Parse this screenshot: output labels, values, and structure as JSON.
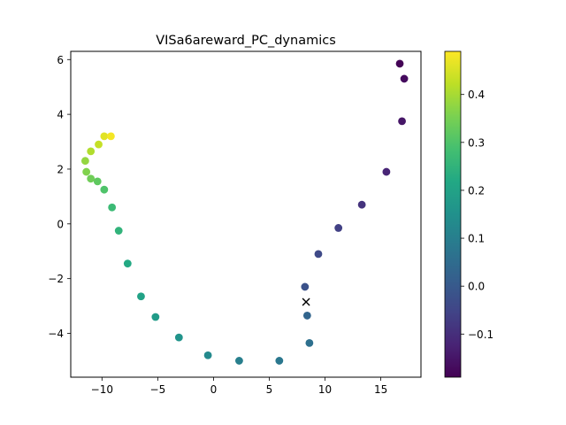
{
  "chart_data": {
    "type": "scatter",
    "title": "VISa6areward_PC_dynamics",
    "xlabel": "",
    "ylabel": "",
    "xlim": [
      -12.8,
      18.6
    ],
    "ylim": [
      -5.6,
      6.3
    ],
    "xticks": [
      -10,
      -5,
      0,
      5,
      10,
      15
    ],
    "yticks": [
      -4,
      -2,
      0,
      2,
      4,
      6
    ],
    "x_tick_labels": [
      "−10",
      "−5",
      "0",
      "5",
      "10",
      "15"
    ],
    "y_tick_labels": [
      "−4",
      "−2",
      "0",
      "2",
      "4",
      "6"
    ],
    "grid": false,
    "colormap": "viridis",
    "colorbar": {
      "range": [
        -0.19,
        0.49
      ],
      "ticks": [
        -0.1,
        0.0,
        0.1,
        0.2,
        0.3,
        0.4
      ],
      "tick_labels": [
        "−0.1",
        "0.0",
        "0.1",
        "0.2",
        "0.3",
        "0.4"
      ]
    },
    "points": [
      {
        "x": 16.7,
        "y": 5.85,
        "c": -0.185
      },
      {
        "x": 17.1,
        "y": 5.3,
        "c": -0.17
      },
      {
        "x": 16.9,
        "y": 3.75,
        "c": -0.15
      },
      {
        "x": 15.5,
        "y": 1.9,
        "c": -0.12
      },
      {
        "x": 13.3,
        "y": 0.7,
        "c": -0.09
      },
      {
        "x": 11.2,
        "y": -0.15,
        "c": -0.06
      },
      {
        "x": 9.4,
        "y": -1.1,
        "c": -0.04
      },
      {
        "x": 8.2,
        "y": -2.3,
        "c": -0.02
      },
      {
        "x": 8.4,
        "y": -3.35,
        "c": 0.03
      },
      {
        "x": 8.6,
        "y": -4.35,
        "c": 0.06
      },
      {
        "x": 5.9,
        "y": -5.0,
        "c": 0.08
      },
      {
        "x": 2.3,
        "y": -5.0,
        "c": 0.1
      },
      {
        "x": -0.5,
        "y": -4.8,
        "c": 0.13
      },
      {
        "x": -3.1,
        "y": -4.15,
        "c": 0.16
      },
      {
        "x": -5.2,
        "y": -3.4,
        "c": 0.18
      },
      {
        "x": -6.5,
        "y": -2.65,
        "c": 0.2
      },
      {
        "x": -7.7,
        "y": -1.45,
        "c": 0.22
      },
      {
        "x": -8.5,
        "y": -0.25,
        "c": 0.25
      },
      {
        "x": -9.1,
        "y": 0.6,
        "c": 0.27
      },
      {
        "x": -9.8,
        "y": 1.25,
        "c": 0.3
      },
      {
        "x": -10.4,
        "y": 1.55,
        "c": 0.32
      },
      {
        "x": -11.0,
        "y": 1.65,
        "c": 0.34
      },
      {
        "x": -11.4,
        "y": 1.9,
        "c": 0.36
      },
      {
        "x": -11.5,
        "y": 2.3,
        "c": 0.38
      },
      {
        "x": -11.0,
        "y": 2.65,
        "c": 0.41
      },
      {
        "x": -10.3,
        "y": 2.9,
        "c": 0.43
      },
      {
        "x": -9.8,
        "y": 3.2,
        "c": 0.46
      },
      {
        "x": -9.2,
        "y": 3.2,
        "c": 0.48
      }
    ],
    "marker": {
      "x": 8.3,
      "y": -2.85,
      "symbol": "×",
      "color": "#000000"
    }
  }
}
